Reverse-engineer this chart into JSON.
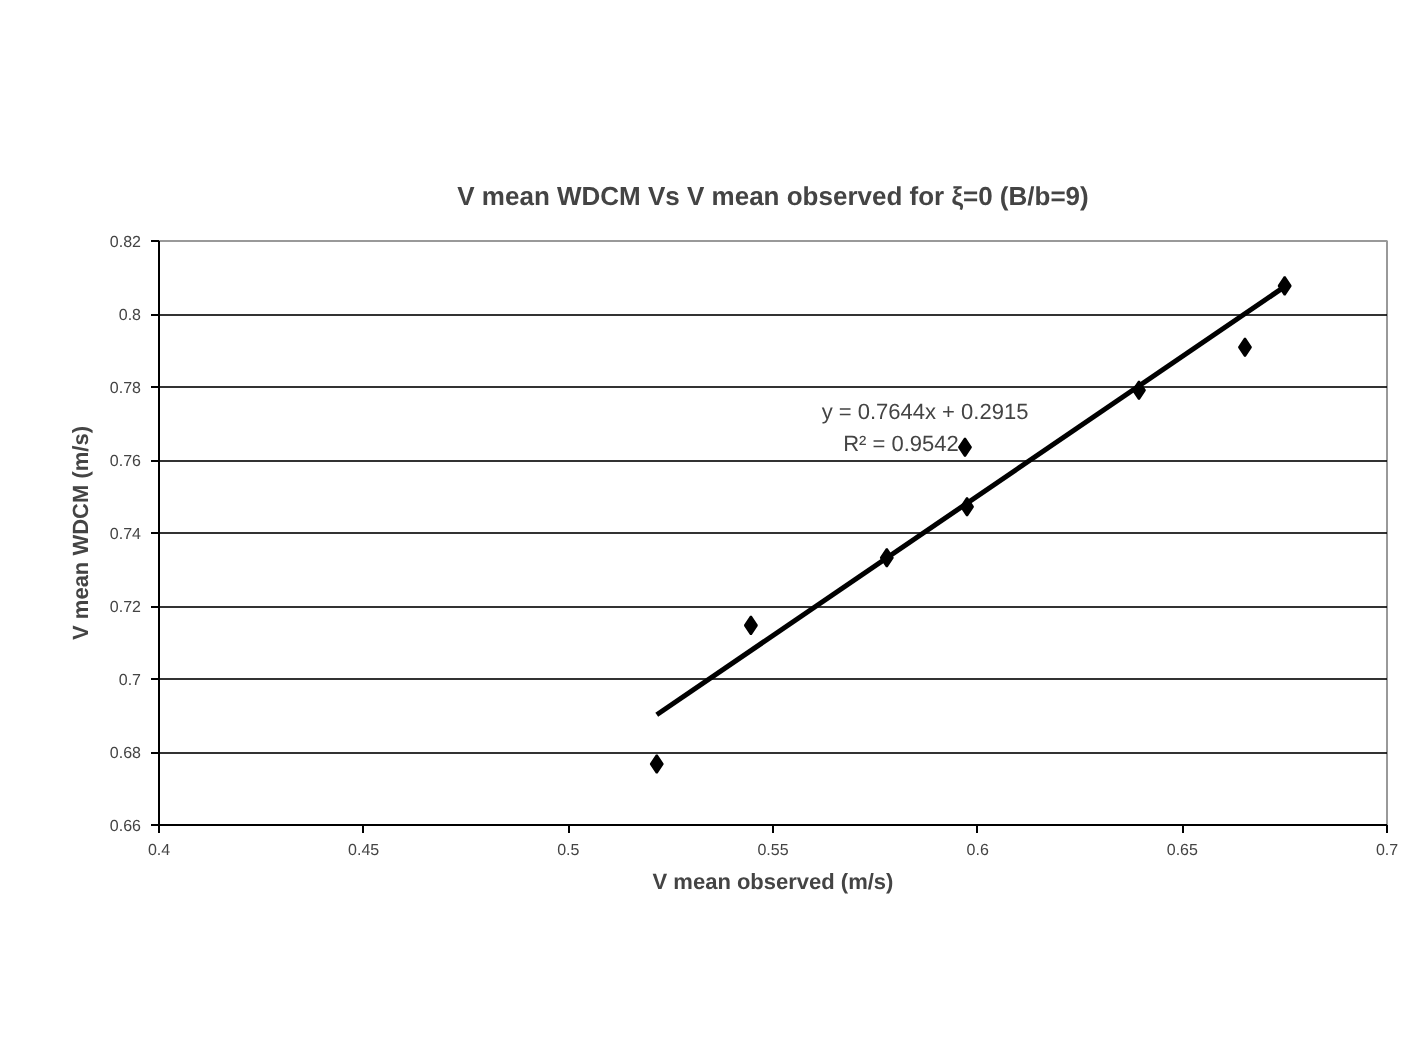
{
  "chart_data": {
    "type": "scatter",
    "title": "V mean WDCM Vs V mean observed for ξ=0 (B/b=9)",
    "xlabel": "V mean observed (m/s)",
    "ylabel": "V mean WDCM (m/s)",
    "series": [
      {
        "type": "scatter",
        "color": "#000000",
        "marker": "diamond",
        "x": [
          0.5216,
          0.5446,
          0.5778,
          0.5974,
          0.5969,
          0.6394,
          0.6653,
          0.675
        ],
        "values": [
          0.6767,
          0.7147,
          0.7332,
          0.7472,
          0.7635,
          0.7791,
          0.7909,
          0.8077
        ]
      },
      {
        "type": "line",
        "color": "#000000",
        "line_style": "solid",
        "x": [
          0.5216,
          0.675
        ],
        "values": [
          0.6902,
          0.8075
        ]
      }
    ],
    "annotations": [
      "y = 0.7644x + 0.2915",
      "R² = 0.9542"
    ],
    "xlim": [
      0.4,
      0.7
    ],
    "xticks": [
      0.4,
      0.45,
      0.5,
      0.55,
      0.6,
      0.65,
      0.7
    ],
    "ylim": [
      0.66,
      0.82
    ],
    "yticks": [
      0.66,
      0.68,
      0.7,
      0.72,
      0.74,
      0.76,
      0.78,
      0.8,
      0.82
    ],
    "grid": "y"
  }
}
